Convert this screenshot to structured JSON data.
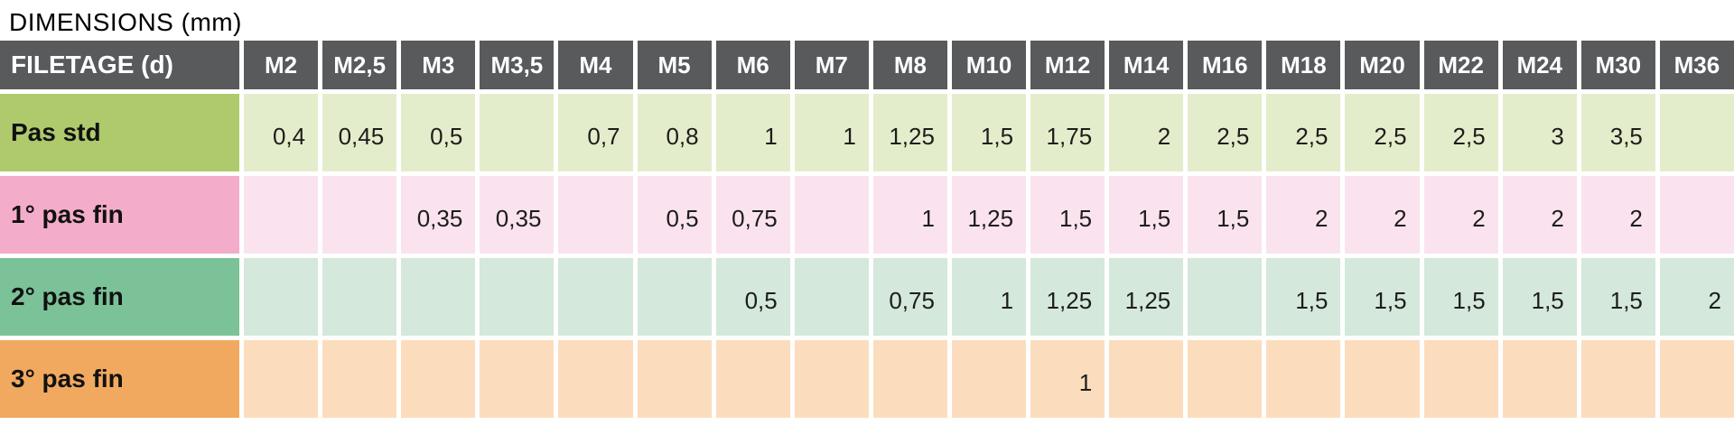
{
  "title": "DIMENSIONS (mm)",
  "chart_data": {
    "type": "table",
    "title": "DIMENSIONS (mm)",
    "columns": [
      "FILETAGE (d)",
      "M2",
      "M2,5",
      "M3",
      "M3,5",
      "M4",
      "M5",
      "M6",
      "M7",
      "M8",
      "M10",
      "M12",
      "M14",
      "M16",
      "M18",
      "M20",
      "M22",
      "M24",
      "M30",
      "M36"
    ],
    "rows": [
      {
        "label": "Pas std",
        "label_color": "#AECA6D",
        "cell_color": "#E4EDCB",
        "values": [
          "0,4",
          "0,45",
          "0,5",
          "",
          "0,7",
          "0,8",
          "1",
          "1",
          "1,25",
          "1,5",
          "1,75",
          "2",
          "2,5",
          "2,5",
          "2,5",
          "2,5",
          "3",
          "3,5",
          ""
        ]
      },
      {
        "label": "1° pas fin",
        "label_color": "#F3ADCA",
        "cell_color": "#FAE3EF",
        "values": [
          "",
          "",
          "0,35",
          "0,35",
          "",
          "0,5",
          "0,75",
          "",
          "1",
          "1,25",
          "1,5",
          "1,5",
          "1,5",
          "2",
          "2",
          "2",
          "2",
          "2",
          ""
        ]
      },
      {
        "label": "2° pas fin",
        "label_color": "#7BC298",
        "cell_color": "#D4E8DB",
        "values": [
          "",
          "",
          "",
          "",
          "",
          "",
          "0,5",
          "",
          "0,75",
          "1",
          "1,25",
          "1,25",
          "",
          "1,5",
          "1,5",
          "1,5",
          "1,5",
          "1,5",
          "2"
        ]
      },
      {
        "label": "3° pas fin",
        "label_color": "#F1A95F",
        "cell_color": "#FBDDBE",
        "values": [
          "",
          "",
          "",
          "",
          "",
          "",
          "",
          "",
          "",
          "",
          "1",
          "",
          "",
          "",
          "",
          "",
          "",
          "",
          ""
        ]
      }
    ],
    "layout": {
      "header_bg": "#595A5C",
      "header_text_color": "#FFFFFF",
      "grid_line_color": "#FFFFFF",
      "value_align": "right"
    }
  }
}
